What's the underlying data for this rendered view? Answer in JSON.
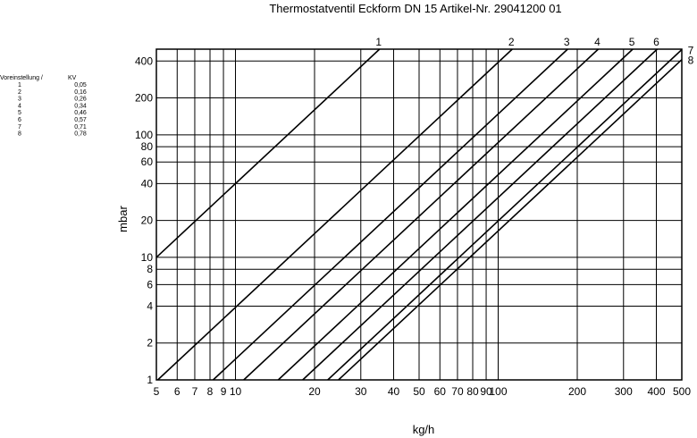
{
  "chart_data": {
    "type": "line",
    "title": "Thermostatventil Eckform DN 15 Artikel-Nr. 29041200 01",
    "xlabel": "kg/h",
    "ylabel": "mbar",
    "x_scale": "log",
    "y_scale": "log",
    "xlim": [
      5,
      500
    ],
    "ylim": [
      1,
      500
    ],
    "grid": true,
    "x_ticks": [
      5,
      6,
      7,
      8,
      9,
      10,
      20,
      30,
      40,
      50,
      60,
      70,
      80,
      90,
      100,
      200,
      300,
      400,
      500
    ],
    "x_tick_labels": [
      "5",
      "6",
      "7",
      "8",
      "9",
      "10",
      "20",
      "30",
      "40",
      "50",
      "60",
      "70",
      "80",
      "90",
      "100",
      "200",
      "300",
      "400",
      "500"
    ],
    "y_ticks": [
      1,
      2,
      4,
      6,
      8,
      10,
      20,
      40,
      60,
      80,
      100,
      200,
      400
    ],
    "y_tick_labels": [
      "1",
      "2",
      "4",
      "6",
      "8",
      "10",
      "20",
      "40",
      "60",
      "80",
      "100",
      "200",
      "400"
    ],
    "series": [
      {
        "name": "1",
        "kv": 0.05
      },
      {
        "name": "2",
        "kv": 0.16
      },
      {
        "name": "3",
        "kv": 0.26
      },
      {
        "name": "4",
        "kv": 0.34
      },
      {
        "name": "5",
        "kv": 0.46
      },
      {
        "name": "6",
        "kv": 0.57
      },
      {
        "name": "7",
        "kv": 0.71
      },
      {
        "name": "8",
        "kv": 0.78
      }
    ],
    "table": {
      "header_setting": "Voreinstellung /",
      "header_kv": "KV",
      "rows": [
        {
          "setting": "1",
          "kv": "0,05"
        },
        {
          "setting": "2",
          "kv": "0,16"
        },
        {
          "setting": "3",
          "kv": "0,26"
        },
        {
          "setting": "4",
          "kv": "0,34"
        },
        {
          "setting": "5",
          "kv": "0,46"
        },
        {
          "setting": "6",
          "kv": "0,57"
        },
        {
          "setting": "7",
          "kv": "0,71"
        },
        {
          "setting": "8",
          "kv": "0,78"
        }
      ]
    }
  }
}
